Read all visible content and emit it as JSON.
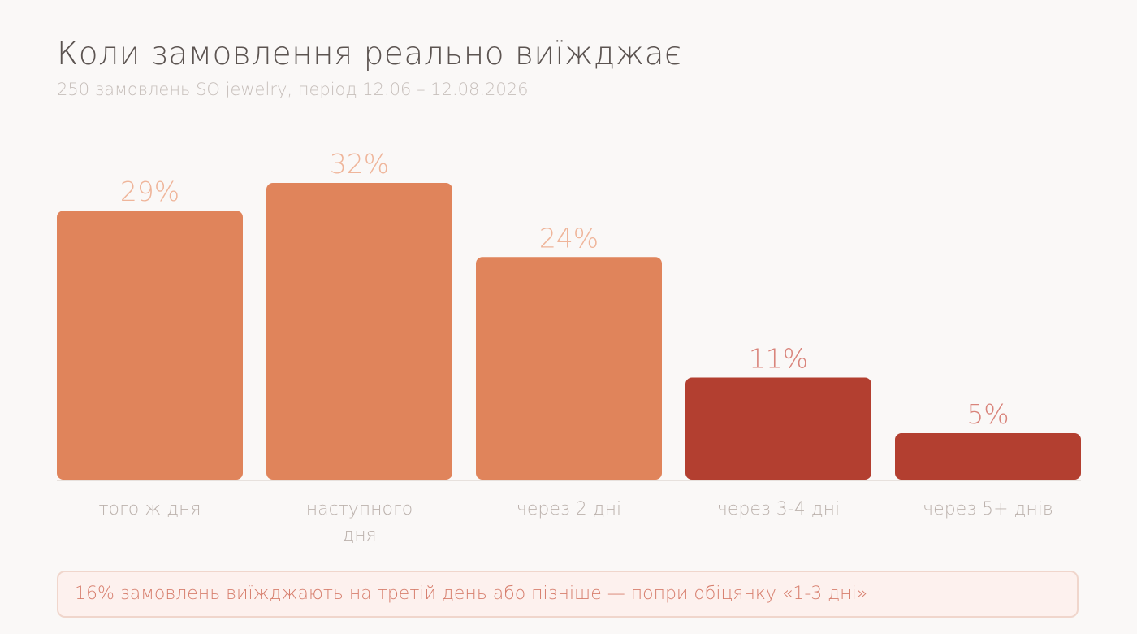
{
  "header": {
    "title": "Коли замовлення реально виїжджає",
    "subtitle": "250 замовлень SO jewelry, період 12.06 – 12.08.2026"
  },
  "chart_data": {
    "type": "bar",
    "categories": [
      [
        "того ж дня"
      ],
      [
        "наступного",
        "дня"
      ],
      [
        "через 2 дні"
      ],
      [
        "через 3-4 дні"
      ],
      [
        "через 5+ днів"
      ]
    ],
    "values": [
      29,
      32,
      24,
      11,
      5
    ],
    "value_labels": [
      "29%",
      "32%",
      "24%",
      "11%",
      "5%"
    ],
    "unit": "%",
    "ylim": [
      0,
      32
    ],
    "grid": false,
    "bar_colors": [
      "#e0845b",
      "#e0845b",
      "#e0845b",
      "#b33f30",
      "#b33f30"
    ],
    "value_label_colors": [
      "#efb59a",
      "#efb59a",
      "#efb59a",
      "#d9847b",
      "#d9847b"
    ]
  },
  "note": {
    "text": "16% замовлень виїжджають на третій день або пізніше — попри обіцянку «1-3 дні»"
  },
  "colors": {
    "background": "#faf8f7",
    "baseline": "#e7e1dd",
    "category_label": "#bcb2ad",
    "note_border": "#f0d6cc",
    "note_background": "#fdf1ee",
    "note_text": "#d77f6e"
  }
}
